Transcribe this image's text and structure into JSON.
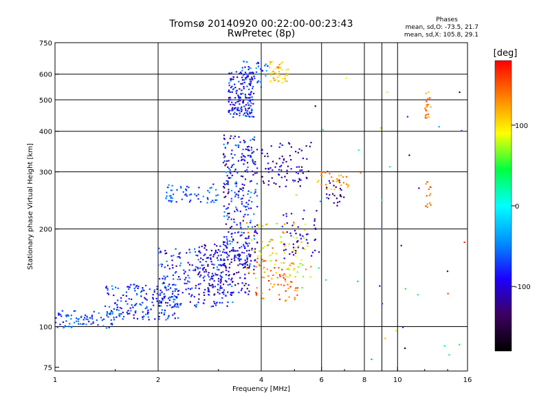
{
  "chart_data": {
    "type": "scatter",
    "title": "Tromsø 20140920 00:22:00-00:23:43",
    "subtitle": "RwPretec (8p)",
    "xlabel": "Frequency [MHz]",
    "ylabel": "Stationary phase Virtual Height [km]",
    "x_scale": "log",
    "y_scale": "log",
    "xlim": [
      1,
      16
    ],
    "ylim": [
      73,
      750
    ],
    "x_ticks": [
      1,
      2,
      4,
      6,
      8,
      10,
      16
    ],
    "x_gridlines": [
      2,
      4,
      6,
      8,
      9,
      10
    ],
    "y_ticks": [
      75,
      100,
      200,
      300,
      400,
      500,
      600,
      750
    ],
    "y_gridlines": [
      100,
      200,
      300,
      400,
      500,
      600
    ],
    "grid": true,
    "phase_annotation": {
      "heading": "Phases",
      "line1": "mean, sd,O: -73.5, 21.7",
      "line2": "mean, sd,X: 105.8, 29.1"
    },
    "colorbar": {
      "unit": "[deg]",
      "range": [
        -180,
        180
      ],
      "ticks": [
        100,
        0,
        -100
      ],
      "colors": [
        "#000000",
        "#3d0060",
        "#1c00ff",
        "#0090ff",
        "#00ffff",
        "#00ff40",
        "#ffff00",
        "#ff8000",
        "#ff0000"
      ]
    },
    "clusters": [
      {
        "n": 80,
        "x": [
          1.0,
          1.5
        ],
        "y": [
          99,
          112
        ],
        "phase": [
          -90,
          -40
        ]
      },
      {
        "n": 180,
        "x": [
          1.4,
          2.3
        ],
        "y": [
          105,
          135
        ],
        "phase": [
          -110,
          -40
        ]
      },
      {
        "n": 220,
        "x": [
          2.0,
          3.3
        ],
        "y": [
          115,
          175
        ],
        "phase": [
          -120,
          -40
        ]
      },
      {
        "n": 160,
        "x": [
          2.6,
          3.7
        ],
        "y": [
          125,
          180
        ],
        "phase": [
          -140,
          -70
        ]
      },
      {
        "n": 300,
        "x": [
          3.1,
          3.9
        ],
        "y": [
          150,
          390
        ],
        "phase": [
          -140,
          -40
        ]
      },
      {
        "n": 60,
        "x": [
          2.1,
          3.0
        ],
        "y": [
          240,
          275
        ],
        "phase": [
          -90,
          -40
        ]
      },
      {
        "n": 170,
        "x": [
          3.2,
          3.8
        ],
        "y": [
          440,
          610
        ],
        "phase": [
          -120,
          -50
        ]
      },
      {
        "n": 40,
        "x": [
          3.5,
          4.2
        ],
        "y": [
          540,
          660
        ],
        "phase": [
          -100,
          -30
        ]
      },
      {
        "n": 50,
        "x": [
          4.2,
          4.8
        ],
        "y": [
          560,
          660
        ],
        "phase": [
          80,
          140
        ]
      },
      {
        "n": 90,
        "x": [
          3.6,
          5.6
        ],
        "y": [
          140,
          210
        ],
        "phase": [
          60,
          150
        ]
      },
      {
        "n": 60,
        "x": [
          3.8,
          5.2
        ],
        "y": [
          120,
          160
        ],
        "phase": [
          110,
          170
        ]
      },
      {
        "n": 80,
        "x": [
          4.0,
          5.6
        ],
        "y": [
          270,
          370
        ],
        "phase": [
          -150,
          -80
        ]
      },
      {
        "n": 50,
        "x": [
          4.6,
          5.8
        ],
        "y": [
          160,
          230
        ],
        "phase": [
          -140,
          -70
        ]
      },
      {
        "n": 25,
        "x": [
          6.2,
          7.0
        ],
        "y": [
          235,
          285
        ],
        "phase": [
          -150,
          -100
        ]
      },
      {
        "n": 30,
        "x": [
          5.8,
          7.2
        ],
        "y": [
          260,
          300
        ],
        "phase": [
          100,
          150
        ]
      },
      {
        "n": 20,
        "x": [
          12.0,
          12.5
        ],
        "y": [
          440,
          540
        ],
        "phase": [
          110,
          160
        ]
      },
      {
        "n": 15,
        "x": [
          12.0,
          12.5
        ],
        "y": [
          230,
          280
        ],
        "phase": [
          120,
          165
        ]
      },
      {
        "n": 45,
        "x": [
          4.5,
          16.0
        ],
        "y": [
          76,
          650
        ],
        "phase": [
          -160,
          170
        ]
      }
    ]
  }
}
